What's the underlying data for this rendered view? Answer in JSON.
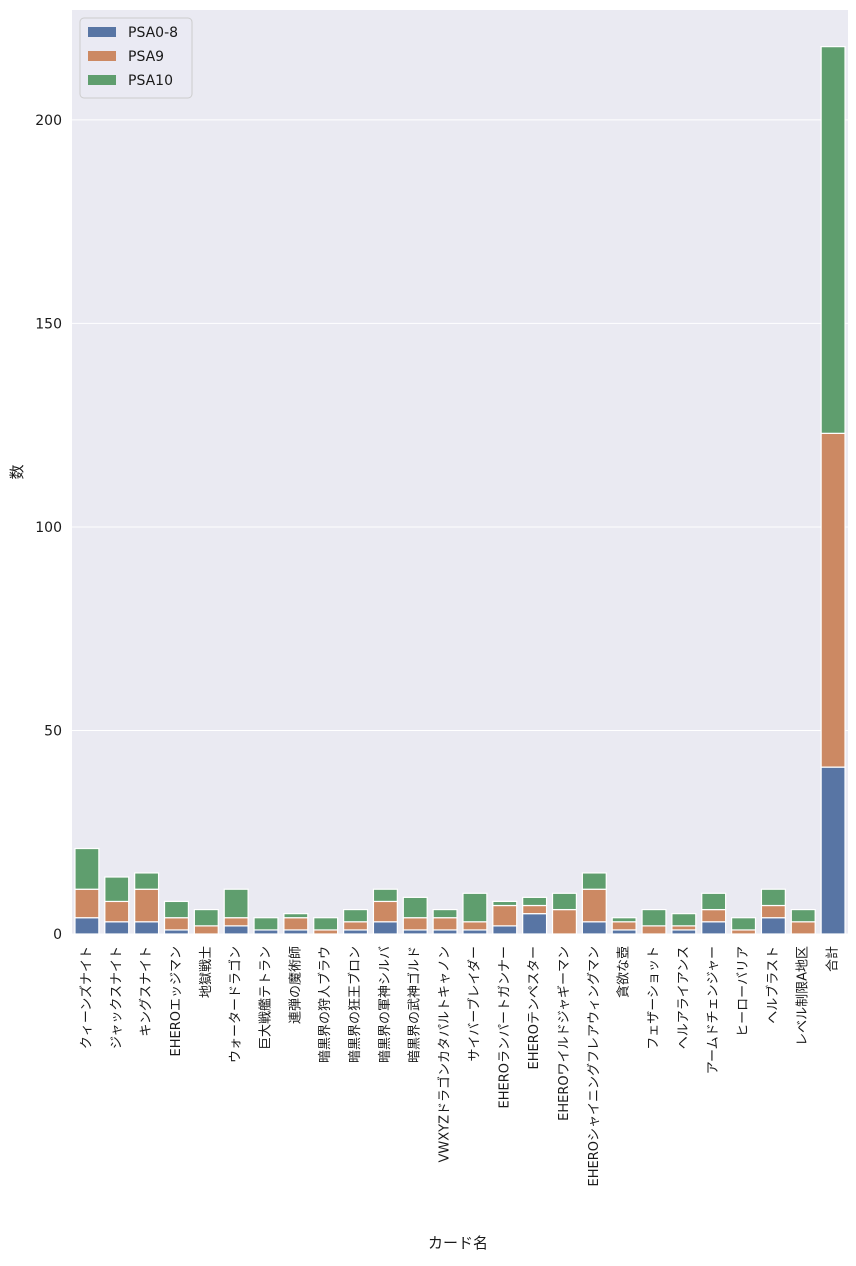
{
  "chart_data": {
    "type": "bar",
    "stacked": true,
    "title": "",
    "xlabel": "カード名",
    "ylabel": "数",
    "ylim": [
      0,
      227
    ],
    "yticks": [
      0,
      50,
      100,
      150,
      200
    ],
    "grid": true,
    "legend_position": "top-left",
    "categories": [
      "クィーンズナイト",
      "ジャックスナイト",
      "キングスナイト",
      "EHEROエッジマン",
      "地獄戦士",
      "ウォータードラゴン",
      "巨大戦艦テトラン",
      "連弾の魔術師",
      "暗黒界の狩人ブラウ",
      "暗黒界の狂王ブロン",
      "暗黒界の軍神シルバ",
      "暗黒界の武神ゴルド",
      "VWXYZドラゴンカタパルトキャノン",
      "サイバーブレイダー",
      "EHEROランパートガンナー",
      "EHEROテンペスター",
      "EHEROワイルドジャギーマン",
      "EHEROシャイニングフレアウィングマン",
      "貪欲な壺",
      "フェザーショット",
      "ヘルアライアンス",
      "アームドチェンジャー",
      "ヒーローバリア",
      "ヘルブラスト",
      "レベル制限A地区",
      "合計"
    ],
    "series": [
      {
        "name": "PSA0-8",
        "color": "#5875a4",
        "values": [
          4,
          3,
          3,
          1,
          0,
          2,
          1,
          1,
          0,
          1,
          3,
          1,
          1,
          1,
          2,
          5,
          0,
          3,
          1,
          0,
          1,
          3,
          0,
          4,
          0,
          41
        ]
      },
      {
        "name": "PSA9",
        "color": "#cc8963",
        "values": [
          7,
          5,
          8,
          3,
          2,
          2,
          0,
          3,
          1,
          2,
          5,
          3,
          3,
          2,
          5,
          2,
          6,
          8,
          2,
          2,
          1,
          3,
          1,
          3,
          3,
          82
        ]
      },
      {
        "name": "PSA10",
        "color": "#5f9e6e",
        "values": [
          10,
          6,
          4,
          4,
          4,
          7,
          3,
          1,
          3,
          3,
          3,
          5,
          2,
          7,
          1,
          2,
          4,
          4,
          1,
          4,
          3,
          4,
          3,
          4,
          3,
          95
        ]
      }
    ]
  }
}
